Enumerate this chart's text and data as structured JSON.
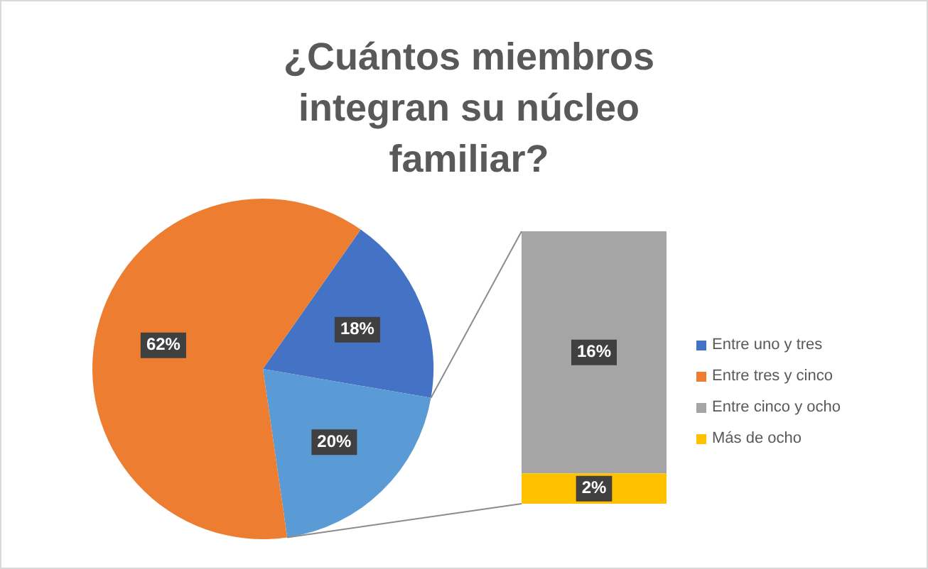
{
  "chart_data": [
    {
      "type": "pie",
      "title": "¿Cuántos miembros integran su núcleo familiar?",
      "categories": [
        "Entre uno y tres",
        null,
        "Entre tres y cinco"
      ],
      "values": [
        18,
        20,
        62
      ],
      "colors": [
        "#4472c4",
        "#5b9bd5",
        "#ed7d31"
      ],
      "value_labels": [
        "18%",
        "20%",
        "62%"
      ],
      "legend": "right"
    },
    {
      "type": "bar",
      "stacked": true,
      "categories": [
        null
      ],
      "series": [
        {
          "name": "Más de ocho",
          "color": "#ffc000",
          "values": [
            2
          ],
          "value_labels": [
            "2%"
          ]
        },
        {
          "name": "Entre cinco y ocho",
          "color": "#a5a5a5",
          "values": [
            16
          ],
          "value_labels": [
            "16%"
          ]
        }
      ],
      "legend": "right"
    }
  ]
}
